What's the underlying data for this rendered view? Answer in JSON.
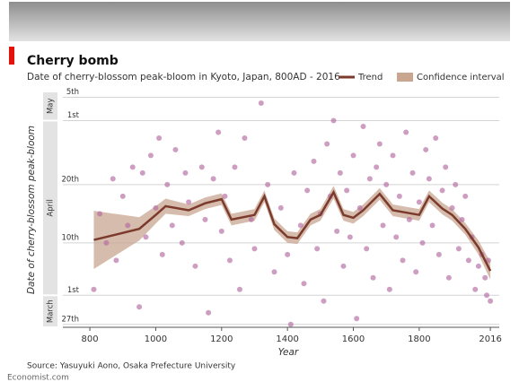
{
  "chart_data": {
    "type": "scatter",
    "title": "Cherry bomb",
    "subtitle": "Date of cherry-blossom peak-bloom in Kyoto, Japan, 800AD - 2016",
    "x_label": "Year",
    "y_label": "Date of cherry-blossom peak-bloom",
    "source": "Source: Yasuyuki Aono, Osaka Prefecture University",
    "credit": "Economist.com",
    "xlim": [
      718,
      2043
    ],
    "xticks": [
      800,
      1000,
      1200,
      1400,
      1600,
      1800,
      2016
    ],
    "ylim": [
      85.5,
      126
    ],
    "yticks": [
      {
        "value": 86,
        "label": "27th"
      },
      {
        "value": 91,
        "label": "1st"
      },
      {
        "value": 100,
        "label": "10th"
      },
      {
        "value": 110,
        "label": "20th"
      },
      {
        "value": 121,
        "label": "1st"
      },
      {
        "value": 125,
        "label": "5th"
      }
    ],
    "grid": true,
    "month_bands": [
      {
        "label": "May",
        "from": 121,
        "to": 126
      },
      {
        "label": "April",
        "from": 91,
        "to": 121
      },
      {
        "label": "March",
        "from": 85.5,
        "to": 91
      }
    ],
    "points": {
      "color": "#b46aa2",
      "x": [
        812,
        830,
        850,
        870,
        880,
        900,
        915,
        930,
        950,
        960,
        970,
        985,
        1000,
        1010,
        1020,
        1035,
        1050,
        1060,
        1080,
        1090,
        1100,
        1120,
        1140,
        1150,
        1160,
        1175,
        1190,
        1200,
        1210,
        1225,
        1240,
        1255,
        1270,
        1290,
        1300,
        1320,
        1340,
        1360,
        1380,
        1400,
        1410,
        1420,
        1440,
        1450,
        1460,
        1480,
        1490,
        1500,
        1510,
        1520,
        1530,
        1540,
        1550,
        1560,
        1570,
        1580,
        1590,
        1600,
        1610,
        1620,
        1630,
        1640,
        1650,
        1660,
        1670,
        1680,
        1690,
        1700,
        1710,
        1720,
        1730,
        1740,
        1750,
        1760,
        1770,
        1780,
        1790,
        1800,
        1810,
        1820,
        1830,
        1840,
        1850,
        1860,
        1870,
        1880,
        1890,
        1900,
        1910,
        1920,
        1930,
        1940,
        1950,
        1960,
        1970,
        1980,
        1990,
        2000,
        2005,
        2010,
        2016
      ],
      "values": [
        92,
        105,
        100,
        111,
        97,
        108,
        103,
        113,
        89,
        112,
        101,
        115,
        106,
        118,
        98,
        110,
        103,
        116,
        100,
        112,
        107,
        96,
        113,
        104,
        88,
        111,
        119,
        102,
        108,
        97,
        113,
        92,
        118,
        104,
        99,
        124,
        110,
        95,
        106,
        98,
        86,
        112,
        103,
        93,
        109,
        114,
        99,
        105,
        90,
        117,
        108,
        121,
        102,
        112,
        96,
        109,
        101,
        115,
        87,
        106,
        120,
        99,
        111,
        94,
        113,
        117,
        103,
        110,
        92,
        115,
        101,
        108,
        97,
        119,
        104,
        112,
        95,
        107,
        100,
        116,
        111,
        103,
        118,
        98,
        109,
        113,
        94,
        106,
        110,
        99,
        104,
        108,
        97,
        101,
        92,
        96,
        98,
        94,
        91,
        97,
        90
      ]
    },
    "series": [
      {
        "name": "Trend",
        "color": "#7b3a2c",
        "x": [
          812,
          950,
          1000,
          1030,
          1100,
          1150,
          1200,
          1230,
          1300,
          1330,
          1360,
          1400,
          1430,
          1470,
          1500,
          1540,
          1570,
          1600,
          1630,
          1680,
          1720,
          1760,
          1800,
          1830,
          1870,
          1900,
          1940,
          1980,
          2016
        ],
        "values": [
          100.5,
          102.4,
          104.8,
          106.3,
          105.6,
          106.8,
          107.5,
          104,
          104.8,
          108,
          103.2,
          101,
          100.8,
          104,
          104.8,
          108.7,
          104.8,
          104.3,
          105.6,
          108.4,
          105.6,
          105.2,
          104.8,
          108,
          105.9,
          104.8,
          102.4,
          99.2,
          95.2
        ]
      },
      {
        "name": "Confidence interval",
        "color": "#c8a690",
        "lower": [
          95.5,
          100.4,
          103.3,
          105,
          104.6,
          105.8,
          106.5,
          103,
          103.8,
          107,
          102.2,
          100,
          99.8,
          103,
          103.8,
          107.6,
          103.8,
          103.3,
          104.6,
          107.4,
          104.6,
          104.2,
          103.8,
          107,
          104.9,
          103.8,
          101.4,
          98,
          93.7
        ],
        "upper": [
          105.5,
          104.4,
          106.3,
          107.6,
          106.6,
          107.8,
          108.5,
          105,
          105.8,
          109,
          104.2,
          102,
          101.8,
          105,
          105.8,
          109.8,
          105.8,
          105.3,
          106.6,
          109.4,
          106.6,
          106.2,
          105.8,
          109,
          106.9,
          105.8,
          103.4,
          100.4,
          96.7
        ]
      }
    ]
  }
}
